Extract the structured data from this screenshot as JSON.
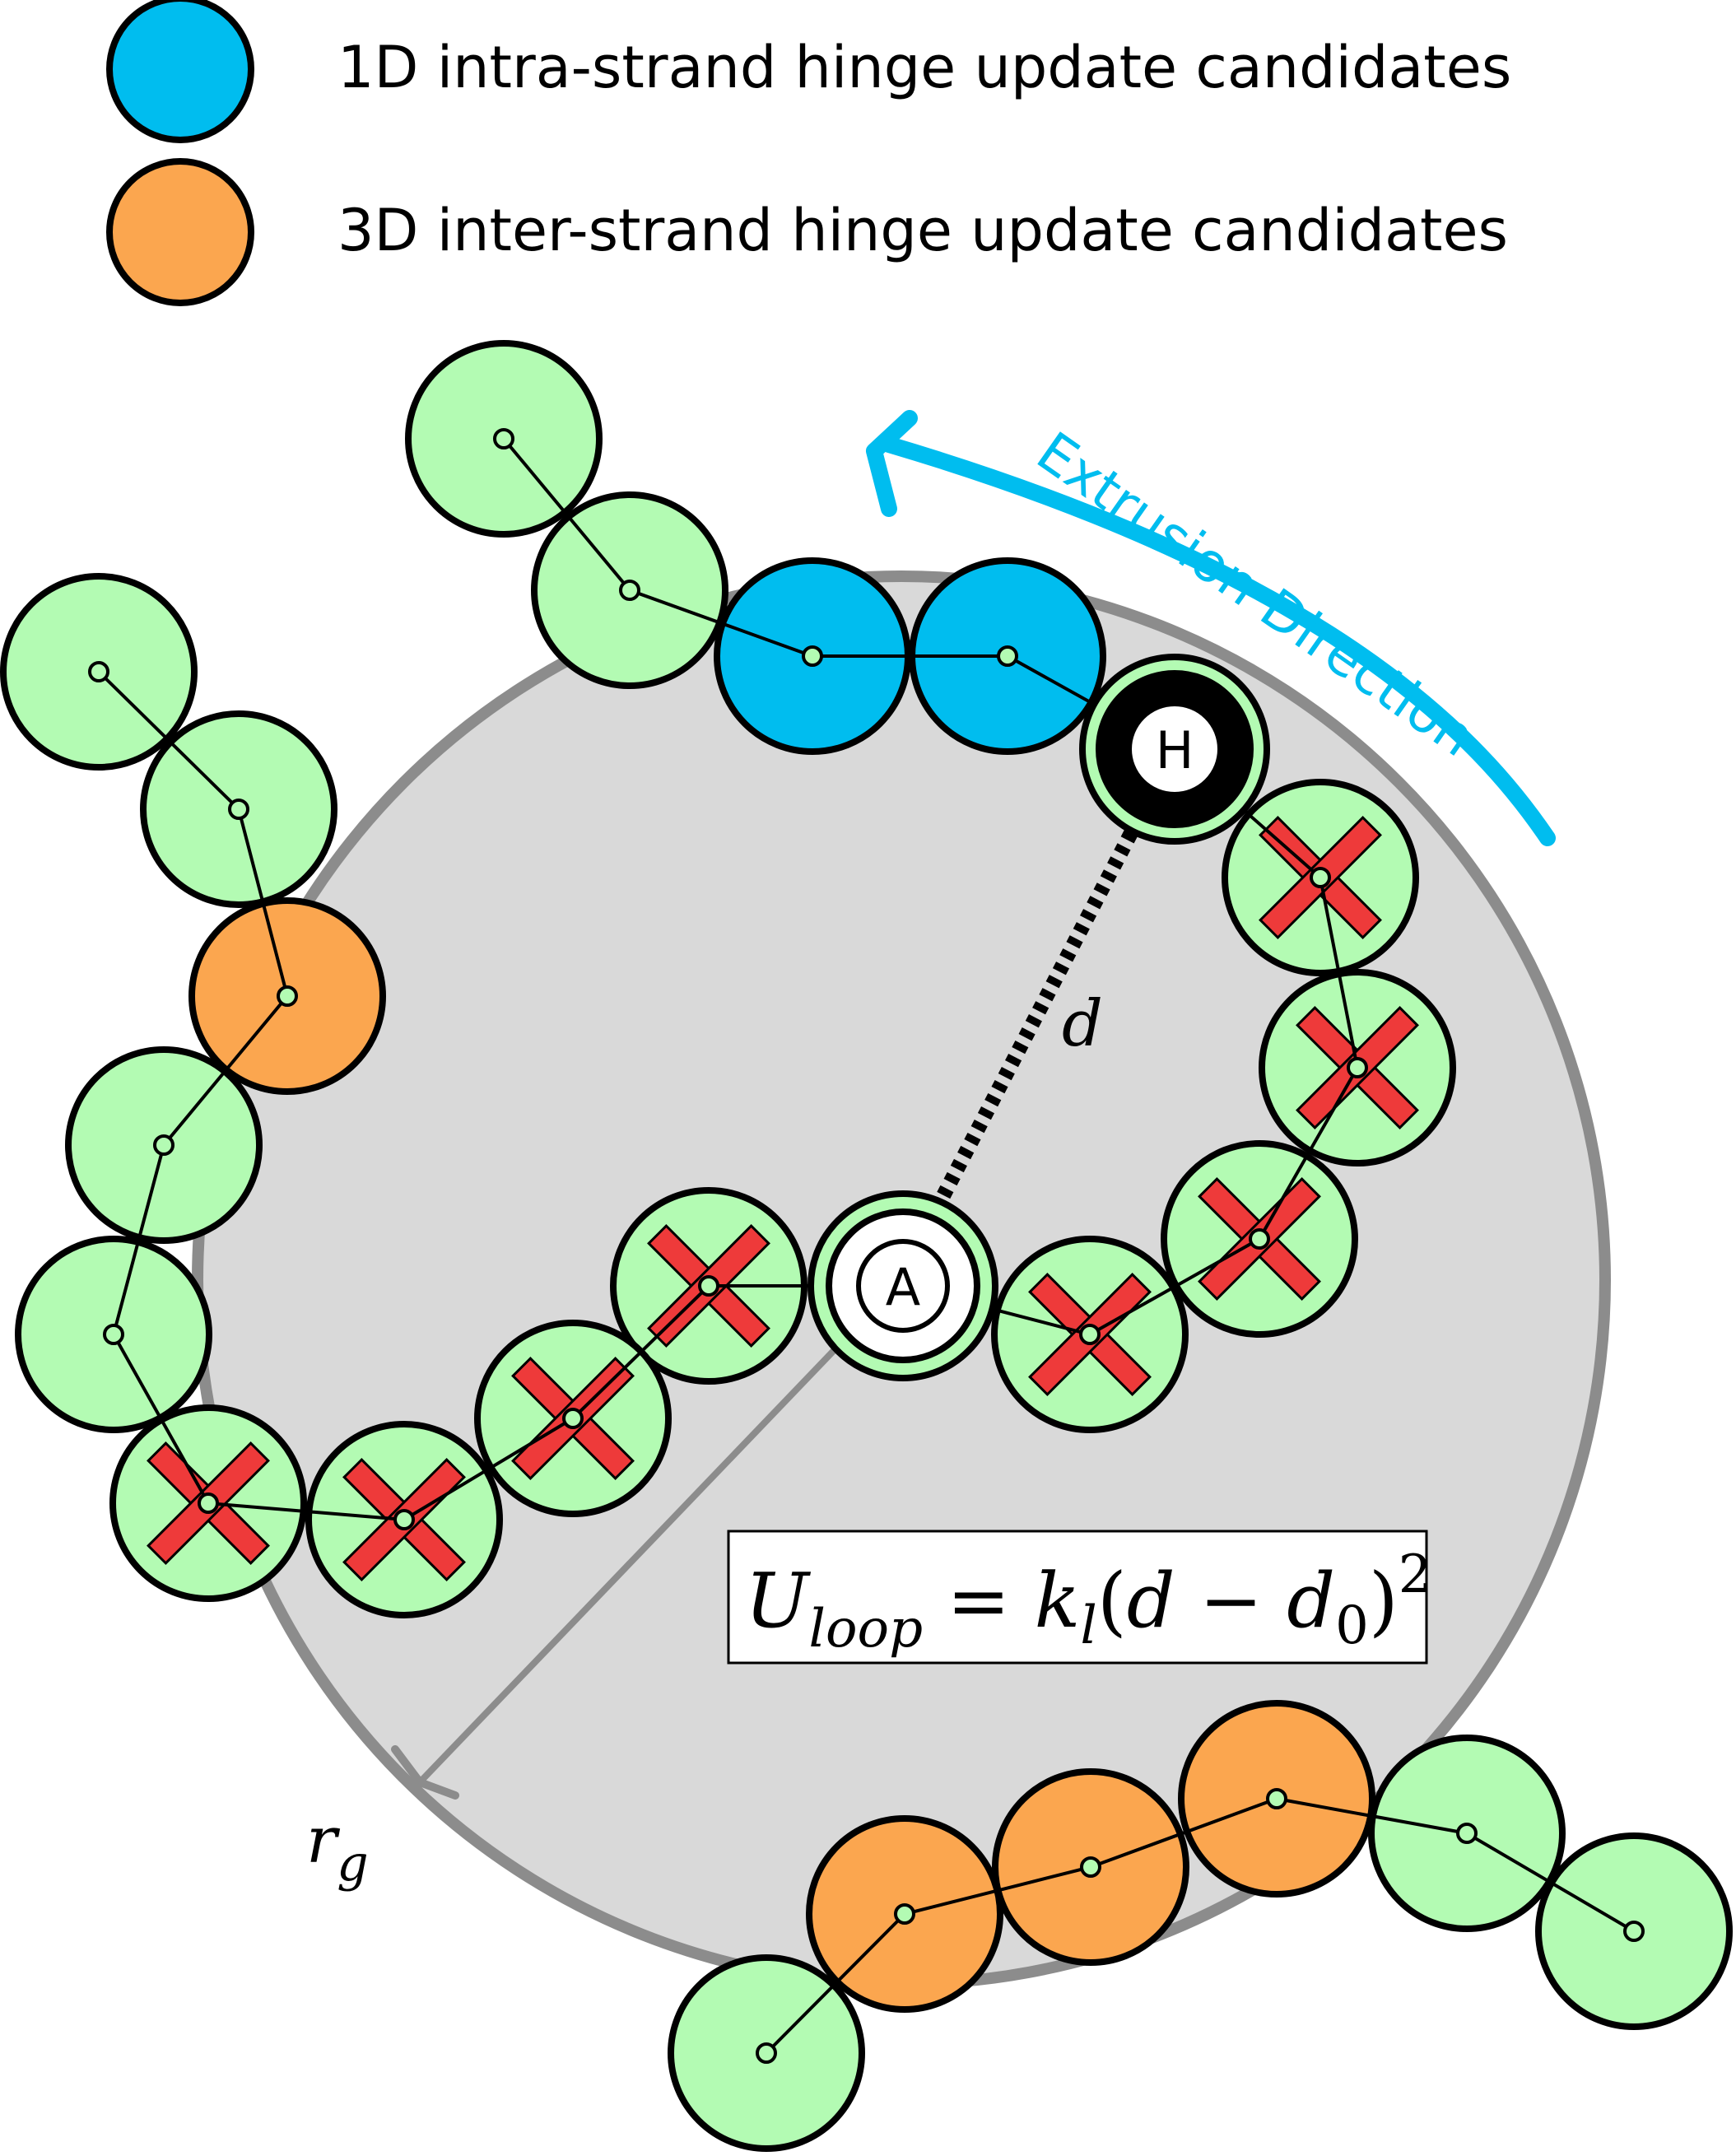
{
  "legend": {
    "items": [
      {
        "label": "1D intra-strand hinge update candidates",
        "color": "#00BDEF"
      },
      {
        "label": "3D inter-strand hinge update candidates",
        "color": "#FBA64F"
      }
    ]
  },
  "colors": {
    "bead_default": "#B3FBB3",
    "bead_1d": "#00BDEF",
    "bead_3d": "#FBA64F",
    "region_fill": "#D9D9D9",
    "region_stroke": "#8C8C8C",
    "cross": "#EE3A3A",
    "arrow": "#00BDEF",
    "hinge_fill": "#000000"
  },
  "labels": {
    "hinge": "H",
    "anchor": "A",
    "distance": "d",
    "radius": "r",
    "radius_sub": "g",
    "extrusion_direction": "Extrusion Direction"
  },
  "equation": {
    "lhs": "U",
    "lhs_sub": "loop",
    "eq": " = ",
    "k": "k",
    "k_sub": "l",
    "open": "(",
    "d": "d",
    "minus": " − ",
    "d0": "d",
    "d0_sub": "0",
    "close": ")",
    "power": "2"
  },
  "icons": {
    "excluded_marker": "red-x-icon",
    "extrusion_arrow": "curved-arrow-icon"
  }
}
